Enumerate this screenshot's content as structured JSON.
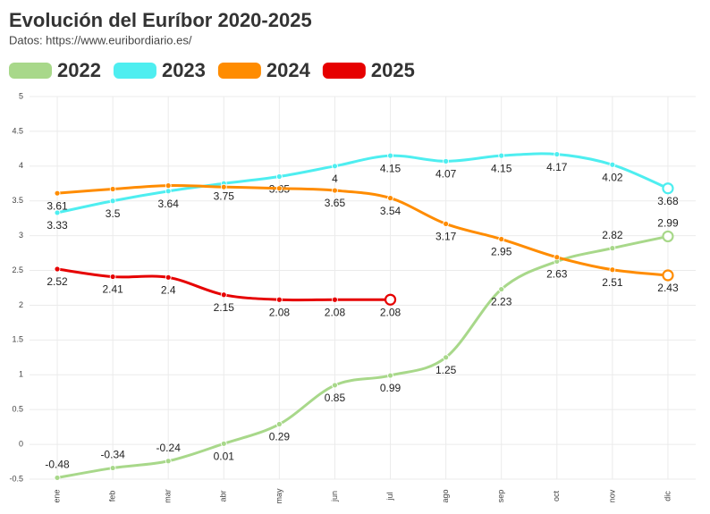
{
  "chart_data": {
    "type": "line",
    "title": "Evolución del Euríbor 2020-2025",
    "subtitle": "Datos: https://www.euribordiario.es/",
    "categories": [
      "ene",
      "feb",
      "mar",
      "abr",
      "may",
      "jun",
      "jul",
      "ago",
      "sep",
      "oct",
      "nov",
      "dic"
    ],
    "series": [
      {
        "name": "2022",
        "color": "#a8d88a",
        "values": [
          -0.48,
          -0.34,
          -0.24,
          0.01,
          0.29,
          0.85,
          0.99,
          1.25,
          2.23,
          2.63,
          2.82,
          2.99
        ],
        "value_labels": [
          "-0.48",
          "-0.34",
          "-0.24",
          "0.01",
          "0.29",
          "0.85",
          "0.99",
          "1.25",
          "2.23",
          "2.63",
          "2.82",
          "2.99"
        ]
      },
      {
        "name": "2023",
        "color": "#4eeef0",
        "values": [
          3.33,
          3.5,
          3.64,
          3.75,
          3.85,
          4,
          4.15,
          4.07,
          4.15,
          4.17,
          4.02,
          3.68
        ],
        "value_labels": [
          "3.33",
          "3.5",
          "3.64",
          "3.75",
          "3.85",
          "4",
          "4.15",
          "4.07",
          "4.15",
          "4.17",
          "4.02",
          "3.68"
        ]
      },
      {
        "name": "2024",
        "color": "#ff8c00",
        "values": [
          3.61,
          3.67,
          3.72,
          3.7,
          3.68,
          3.65,
          3.54,
          3.17,
          2.95,
          2.69,
          2.51,
          2.43
        ],
        "value_labels": [
          "3.61",
          null,
          null,
          null,
          null,
          "3.65",
          "3.54",
          "3.17",
          "2.95",
          null,
          "2.51",
          "2.43"
        ]
      },
      {
        "name": "2025",
        "color": "#e60000",
        "values": [
          2.52,
          2.41,
          2.4,
          2.15,
          2.08,
          2.08,
          2.08,
          null,
          null,
          null,
          null,
          null
        ],
        "value_labels": [
          "2.52",
          "2.41",
          "2.4",
          "2.15",
          "2.08",
          "2.08",
          "2.08",
          null,
          null,
          null,
          null,
          null
        ]
      }
    ],
    "ylim": [
      -0.5,
      5
    ],
    "yticks": [
      -0.5,
      0,
      0.5,
      1,
      1.5,
      2,
      2.5,
      3,
      3.5,
      4,
      4.5,
      5
    ],
    "grid": true
  }
}
